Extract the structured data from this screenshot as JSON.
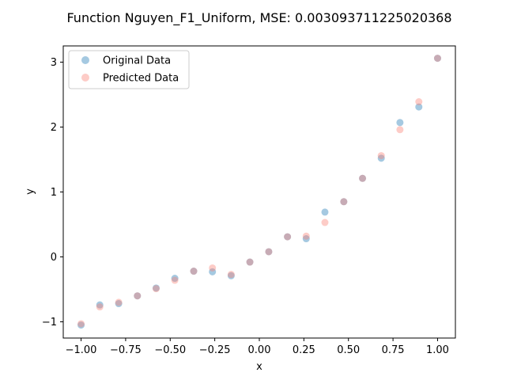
{
  "chart_data": {
    "type": "scatter",
    "title": "Function Nguyen_F1_Uniform, MSE: 0.003093711225020368",
    "xlabel": "x",
    "ylabel": "y",
    "xlim": [
      -1.1,
      1.1
    ],
    "ylim": [
      -1.25,
      3.25
    ],
    "xticks": [
      -1.0,
      -0.75,
      -0.5,
      -0.25,
      0.0,
      0.25,
      0.5,
      0.75,
      1.0
    ],
    "xtick_labels": [
      "−1.00",
      "−0.75",
      "−0.50",
      "−0.25",
      "0.00",
      "0.25",
      "0.50",
      "0.75",
      "1.00"
    ],
    "yticks": [
      -1,
      0,
      1,
      2,
      3
    ],
    "ytick_labels": [
      "−1",
      "0",
      "1",
      "2",
      "3"
    ],
    "grid": false,
    "legend_position": "top-left",
    "series": [
      {
        "name": "Original Data",
        "color": "#1f77b4",
        "points": [
          [
            -1.0,
            -1.05
          ],
          [
            -0.895,
            -0.74
          ],
          [
            -0.789,
            -0.72
          ],
          [
            -0.684,
            -0.6
          ],
          [
            -0.579,
            -0.48
          ],
          [
            -0.474,
            -0.33
          ],
          [
            -0.368,
            -0.22
          ],
          [
            -0.263,
            -0.23
          ],
          [
            -0.158,
            -0.29
          ],
          [
            -0.053,
            -0.08
          ],
          [
            0.053,
            0.08
          ],
          [
            0.158,
            0.31
          ],
          [
            0.263,
            0.28
          ],
          [
            0.368,
            0.69
          ],
          [
            0.474,
            0.85
          ],
          [
            0.579,
            1.21
          ],
          [
            0.684,
            1.52
          ],
          [
            0.789,
            2.07
          ],
          [
            0.895,
            2.31
          ],
          [
            1.0,
            3.06
          ]
        ]
      },
      {
        "name": "Predicted Data",
        "color": "#fa8072",
        "points": [
          [
            -1.0,
            -1.03
          ],
          [
            -0.895,
            -0.77
          ],
          [
            -0.789,
            -0.7
          ],
          [
            -0.684,
            -0.6
          ],
          [
            -0.579,
            -0.49
          ],
          [
            -0.474,
            -0.36
          ],
          [
            -0.368,
            -0.22
          ],
          [
            -0.263,
            -0.17
          ],
          [
            -0.158,
            -0.27
          ],
          [
            -0.053,
            -0.08
          ],
          [
            0.053,
            0.08
          ],
          [
            0.158,
            0.31
          ],
          [
            0.263,
            0.32
          ],
          [
            0.368,
            0.53
          ],
          [
            0.474,
            0.85
          ],
          [
            0.579,
            1.21
          ],
          [
            0.684,
            1.56
          ],
          [
            0.789,
            1.96
          ],
          [
            0.895,
            2.39
          ],
          [
            1.0,
            3.06
          ]
        ]
      }
    ]
  }
}
